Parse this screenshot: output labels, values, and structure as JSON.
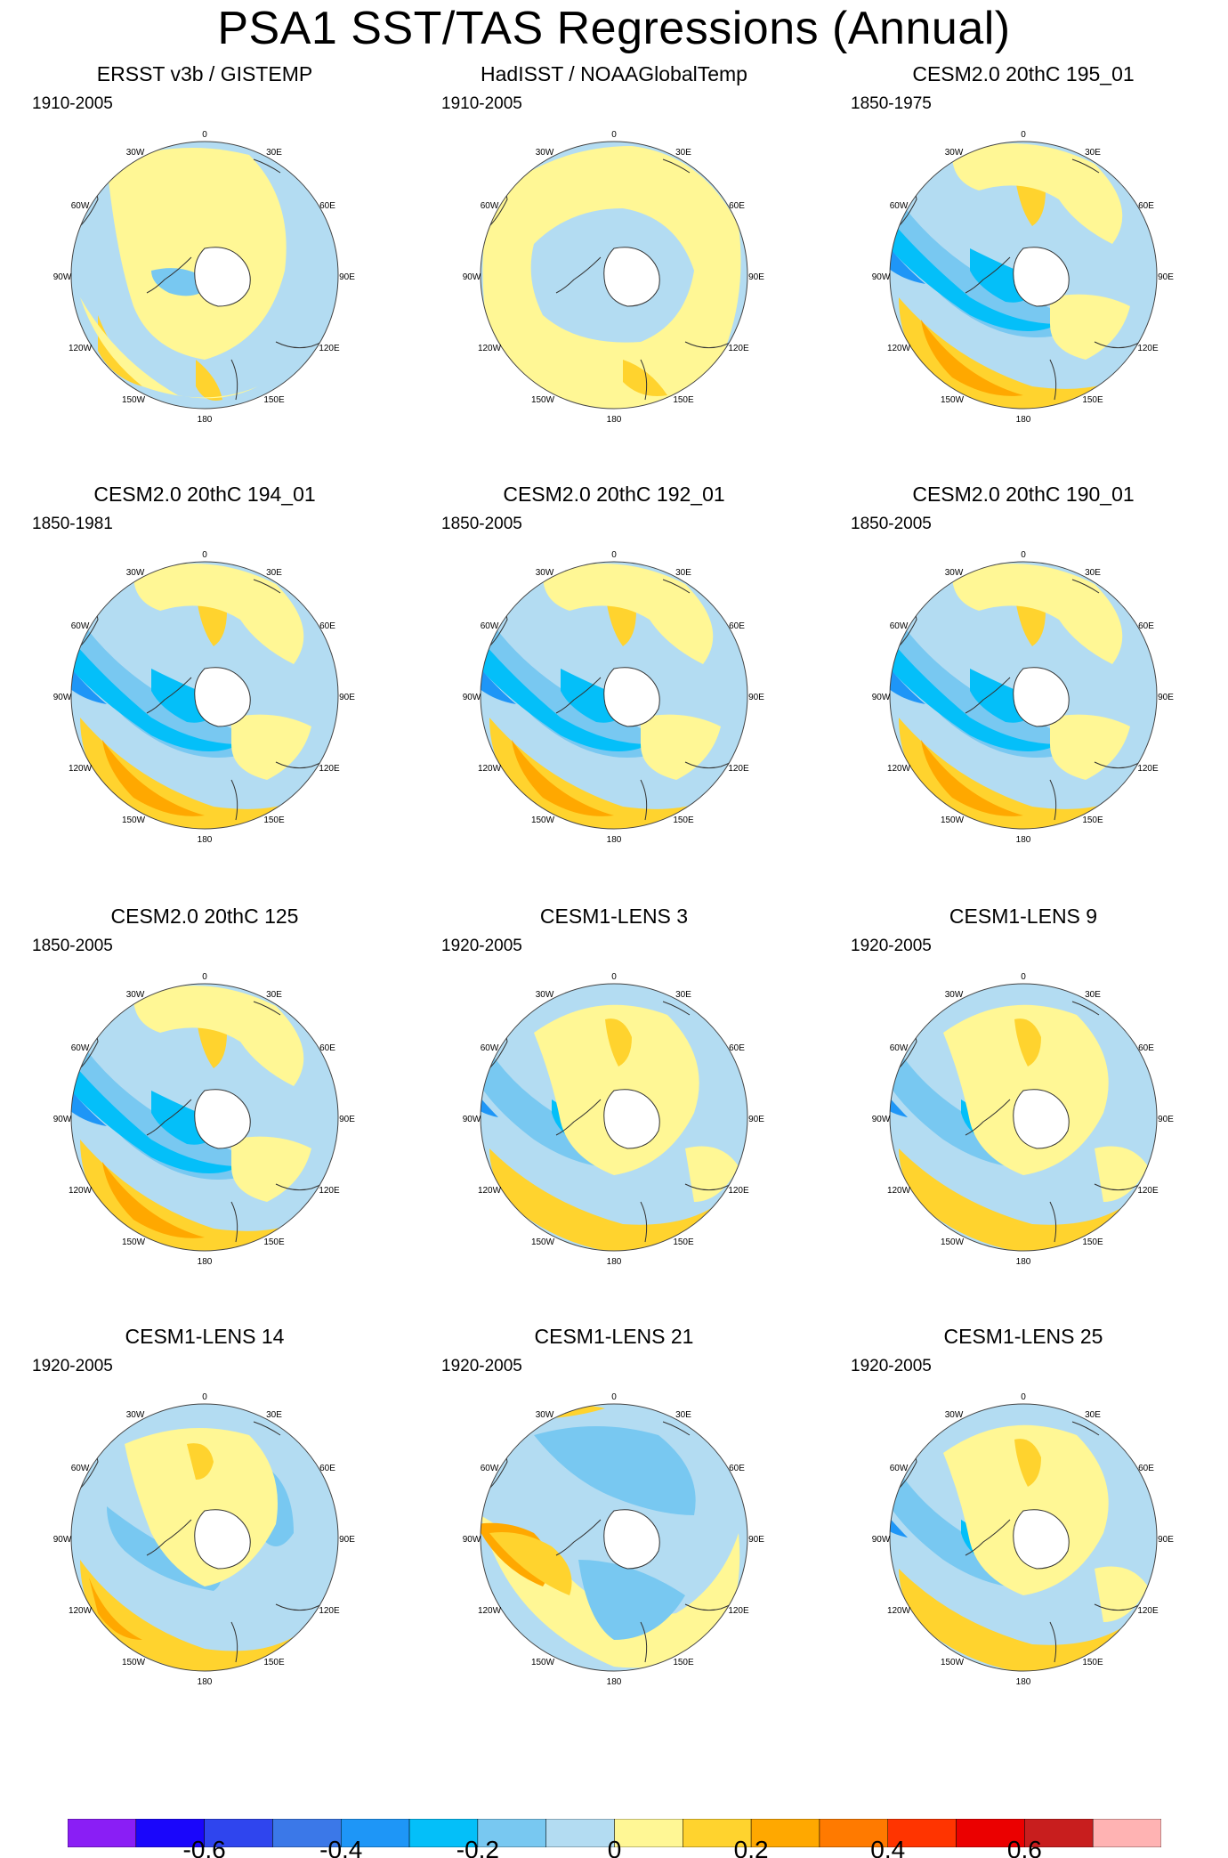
{
  "title": "PSA1 SST/TAS Regressions (Annual)",
  "panels": [
    {
      "title": "ERSST v3b / GISTEMP",
      "period": "1910-2005",
      "pattern": "obs1"
    },
    {
      "title": "HadISST / NOAAGlobalTemp",
      "period": "1910-2005",
      "pattern": "obs2"
    },
    {
      "title": "CESM2.0 20thC 195_01",
      "period": "1850-1975",
      "pattern": "strong"
    },
    {
      "title": "CESM2.0 20thC 194_01",
      "period": "1850-1981",
      "pattern": "strong"
    },
    {
      "title": "CESM2.0 20thC 192_01",
      "period": "1850-2005",
      "pattern": "strong"
    },
    {
      "title": "CESM2.0 20thC 190_01",
      "period": "1850-2005",
      "pattern": "strong"
    },
    {
      "title": "CESM2.0 20thC 125",
      "period": "1850-2005",
      "pattern": "strong"
    },
    {
      "title": "CESM1-LENS 3",
      "period": "1920-2005",
      "pattern": "medium"
    },
    {
      "title": "CESM1-LENS 9",
      "period": "1920-2005",
      "pattern": "medium"
    },
    {
      "title": "CESM1-LENS 14",
      "period": "1920-2005",
      "pattern": "weak"
    },
    {
      "title": "CESM1-LENS 21",
      "period": "1920-2005",
      "pattern": "inverted"
    },
    {
      "title": "CESM1-LENS 25",
      "period": "1920-2005",
      "pattern": "medium"
    }
  ],
  "map_labels": {
    "lon_0": "0",
    "lon_30e": "30E",
    "lon_60e": "60E",
    "lon_90e": "90E",
    "lon_120e": "120E",
    "lon_150e": "150E",
    "lon_180": "180",
    "lon_150w": "150W",
    "lon_120w": "120W",
    "lon_90w": "90W",
    "lon_60w": "60W",
    "lon_30w": "30W"
  },
  "colorbar": {
    "colors": [
      "#8a1ef5",
      "#1a06fb",
      "#2f45ee",
      "#3b78e8",
      "#1e96f7",
      "#04bff9",
      "#78c8f1",
      "#b3dcf2",
      "#fff795",
      "#ffd32e",
      "#ffa800",
      "#ff7a00",
      "#ff3400",
      "#eb0000",
      "#c81e1e",
      "#ffb3b3"
    ],
    "labels": [
      "-0.6",
      "-0.4",
      "-0.2",
      "0",
      "0.2",
      "0.4",
      "0.6"
    ],
    "label_ticks": [
      -0.6,
      -0.4,
      -0.2,
      0,
      0.2,
      0.4,
      0.6
    ],
    "levels": [
      -0.7,
      -0.6,
      -0.5,
      -0.4,
      -0.3,
      -0.2,
      -0.1,
      0,
      0.1,
      0.2,
      0.3,
      0.4,
      0.5,
      0.6,
      0.7
    ]
  },
  "colors": {
    "land": "#ffffff",
    "coast": "#333333",
    "frame": "#444444"
  }
}
